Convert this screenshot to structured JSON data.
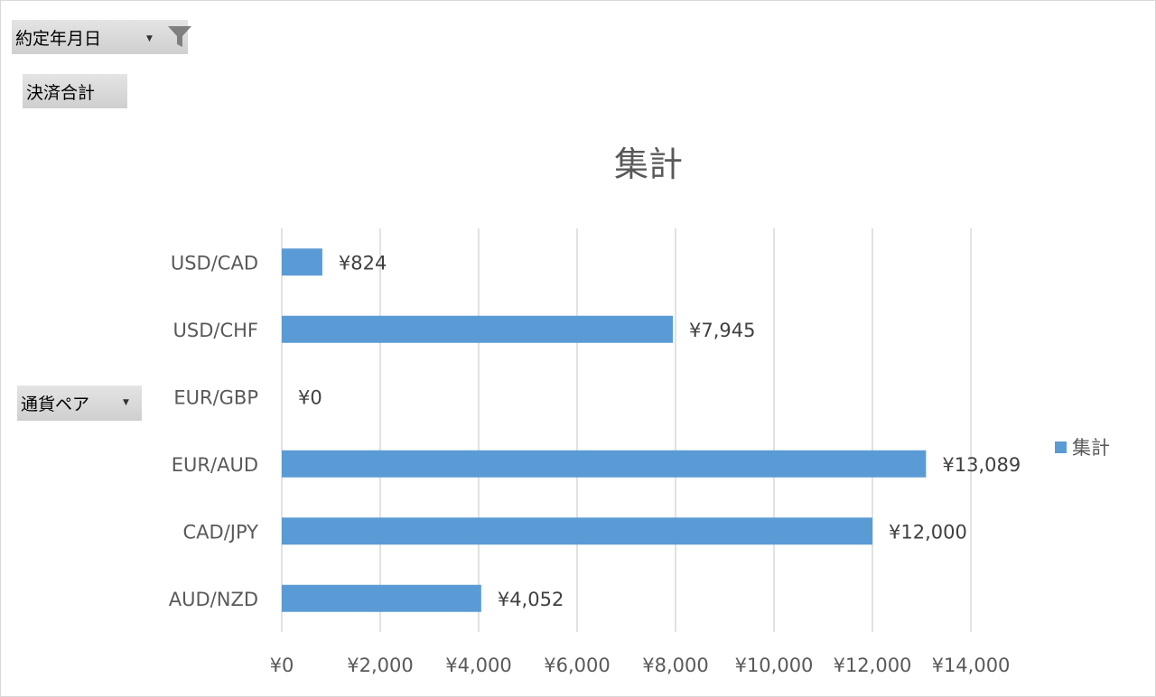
{
  "pivot": {
    "date_field": "約定年月日",
    "value_field": "決済合計",
    "row_field": "通貨ペア"
  },
  "colors": {
    "bar": "#5b9bd5",
    "grid": "#d9d9d9",
    "text": "#595959"
  },
  "chart_data": {
    "type": "bar",
    "orientation": "horizontal",
    "title": "集計",
    "categories": [
      "USD/CAD",
      "USD/CHF",
      "EUR/GBP",
      "EUR/AUD",
      "CAD/JPY",
      "AUD/NZD"
    ],
    "series": [
      {
        "name": "集計",
        "values": [
          824,
          7945,
          0,
          13089,
          12000,
          4052
        ]
      }
    ],
    "data_labels": [
      "¥824",
      "¥7,945",
      "¥0",
      "¥13,089",
      "¥12,000",
      "¥4,052"
    ],
    "xlim": [
      0,
      14000
    ],
    "x_ticks": [
      0,
      2000,
      4000,
      6000,
      8000,
      10000,
      12000,
      14000
    ],
    "x_tick_labels": [
      "¥0",
      "¥2,000",
      "¥4,000",
      "¥6,000",
      "¥8,000",
      "¥10,000",
      "¥12,000",
      "¥14,000"
    ],
    "grid": true,
    "legend_position": "right"
  }
}
